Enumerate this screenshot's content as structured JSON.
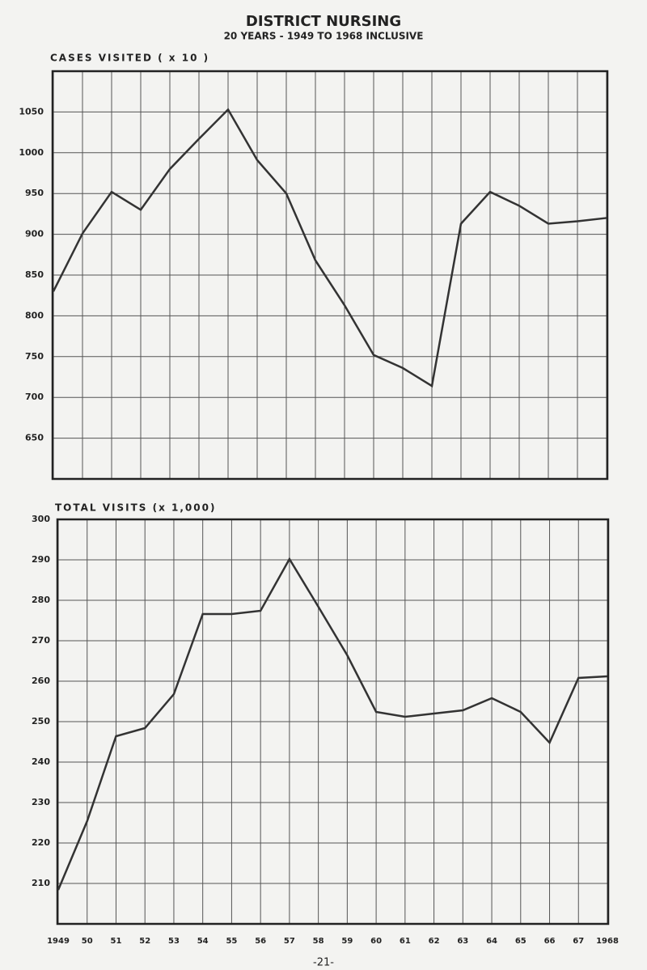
{
  "header": {
    "title": "DISTRICT NURSING",
    "subtitle": "20 YEARS - 1949 TO 1968 INCLUSIVE"
  },
  "footer": "-21-",
  "chart_data": [
    {
      "type": "line",
      "y_label": "CASES VISITED ( x 10 )",
      "values": [
        830,
        901,
        952,
        930,
        980,
        1017,
        1053,
        991,
        950,
        868,
        813,
        752,
        736,
        714,
        913,
        952,
        935,
        913,
        916,
        920
      ],
      "color": "#333333",
      "ylim": [
        600,
        1100
      ],
      "yticks": [
        650,
        700,
        750,
        800,
        850,
        900,
        950,
        1000,
        1050
      ],
      "grid": true
    },
    {
      "type": "line",
      "y_label": "TOTAL VISITS (x 1,000)",
      "categories": [
        "1949",
        "50",
        "51",
        "52",
        "53",
        "54",
        "55",
        "56",
        "57",
        "58",
        "59",
        "60",
        "61",
        "62",
        "63",
        "64",
        "65",
        "66",
        "67",
        "1968"
      ],
      "values": [
        208.4,
        225.4,
        246.4,
        248.4,
        256.8,
        276.6,
        276.6,
        277.4,
        290.2,
        278.4,
        266.4,
        252.4,
        251.2,
        252,
        252.8,
        255.8,
        252.4,
        244.8,
        260.8,
        261.2
      ],
      "color": "#333333",
      "ylim": [
        200,
        300
      ],
      "yticks": [
        210,
        220,
        230,
        240,
        250,
        260,
        270,
        280,
        290,
        300
      ],
      "grid": true
    }
  ]
}
